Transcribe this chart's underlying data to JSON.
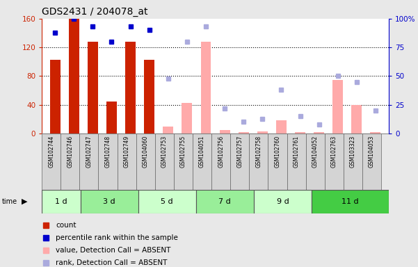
{
  "title": "GDS2431 / 204078_at",
  "samples": [
    "GSM102744",
    "GSM102746",
    "GSM102747",
    "GSM102748",
    "GSM102749",
    "GSM104060",
    "GSM102753",
    "GSM102755",
    "GSM104051",
    "GSM102756",
    "GSM102757",
    "GSM102758",
    "GSM102760",
    "GSM102761",
    "GSM104052",
    "GSM102763",
    "GSM103323",
    "GSM104053"
  ],
  "time_groups": [
    {
      "label": "1 d",
      "start": 0,
      "end": 2,
      "color": "#ccffcc"
    },
    {
      "label": "3 d",
      "start": 2,
      "end": 5,
      "color": "#99ee99"
    },
    {
      "label": "5 d",
      "start": 5,
      "end": 8,
      "color": "#ccffcc"
    },
    {
      "label": "7 d",
      "start": 8,
      "end": 11,
      "color": "#99ee99"
    },
    {
      "label": "9 d",
      "start": 11,
      "end": 14,
      "color": "#ccffcc"
    },
    {
      "label": "11 d",
      "start": 14,
      "end": 18,
      "color": "#44cc44"
    }
  ],
  "count_values": [
    103,
    160,
    128,
    45,
    128,
    103,
    null,
    null,
    null,
    null,
    null,
    null,
    null,
    null,
    null,
    null,
    null,
    null
  ],
  "percentile_values": [
    88,
    100,
    93,
    80,
    93,
    90,
    null,
    null,
    null,
    null,
    null,
    null,
    null,
    null,
    null,
    null,
    null,
    null
  ],
  "absent_value_values": [
    null,
    null,
    null,
    null,
    null,
    null,
    10,
    43,
    128,
    5,
    2,
    3,
    18,
    2,
    2,
    75,
    40,
    2
  ],
  "absent_rank_values": [
    null,
    null,
    null,
    null,
    null,
    null,
    48,
    80,
    93,
    22,
    10,
    13,
    38,
    15,
    8,
    50,
    45,
    20
  ],
  "ylim_left": [
    0,
    160
  ],
  "ylim_right": [
    0,
    100
  ],
  "yticks_left": [
    0,
    40,
    80,
    120,
    160
  ],
  "yticks_right": [
    0,
    25,
    50,
    75,
    100
  ],
  "count_color": "#cc2200",
  "percentile_color": "#0000cc",
  "absent_value_color": "#ffaaaa",
  "absent_rank_color": "#aaaadd",
  "bg_color": "#e8e8e8",
  "plot_bg": "#ffffff"
}
